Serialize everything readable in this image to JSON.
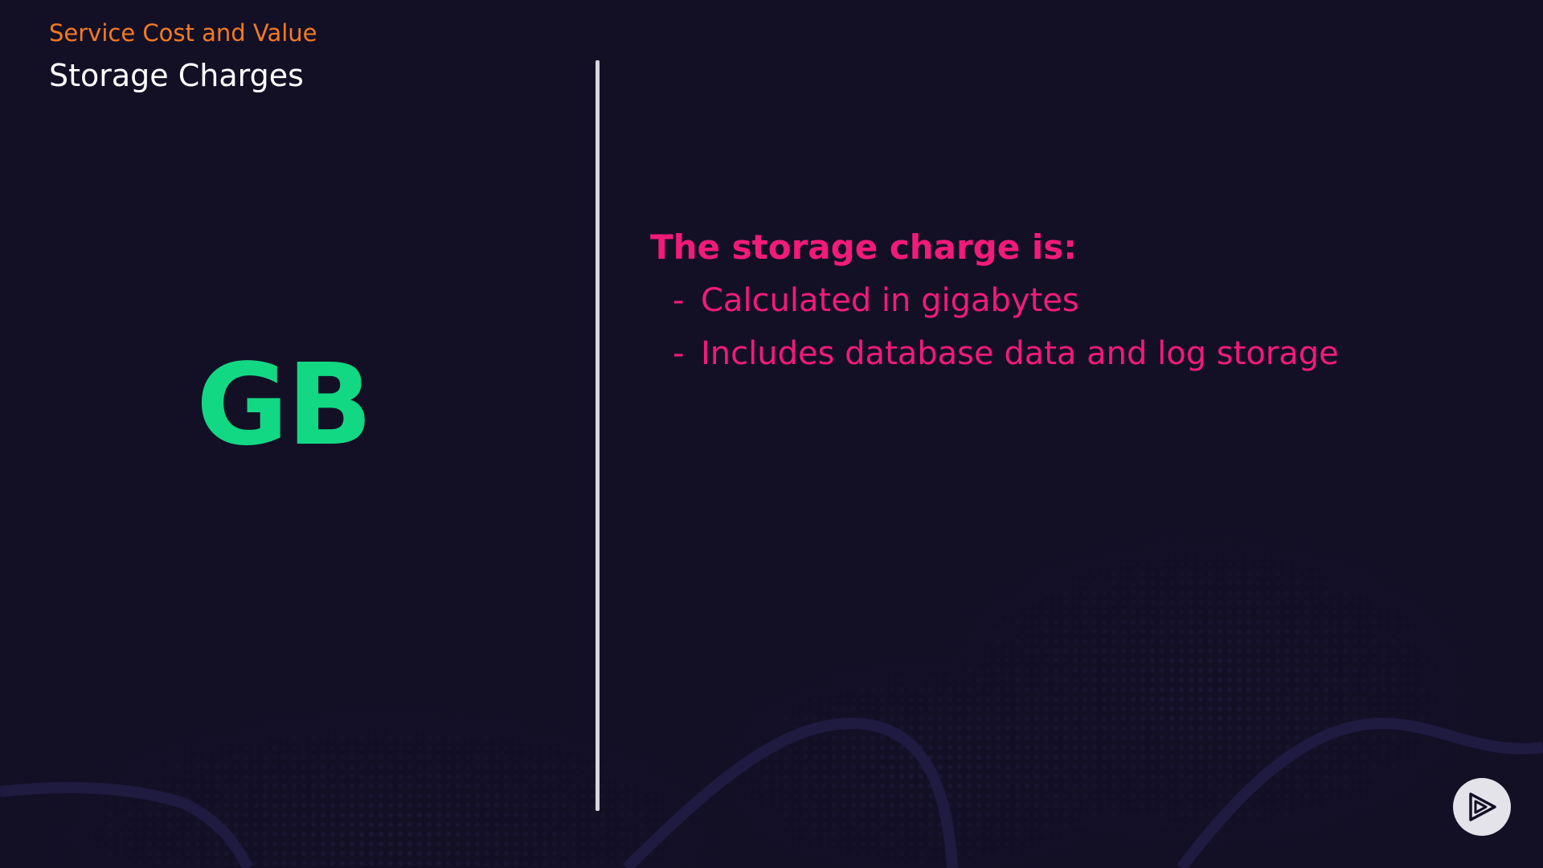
{
  "header": {
    "kicker": "Service Cost and Value",
    "title": "Storage Charges"
  },
  "left_panel": {
    "abbreviation": "GB"
  },
  "content": {
    "heading": "The storage charge is:",
    "bullets": [
      {
        "dash": "-",
        "text": "Calculated in gigabytes"
      },
      {
        "dash": "-",
        "text": "Includes database data and log storage"
      }
    ]
  },
  "icons": {
    "play_button": "play-logo-icon"
  },
  "colors": {
    "background": "#131026",
    "kicker": "#f47a21",
    "title": "#ffffff",
    "abbreviation": "#13d883",
    "content_text": "#f21a7b",
    "divider": "#d8d6df"
  }
}
